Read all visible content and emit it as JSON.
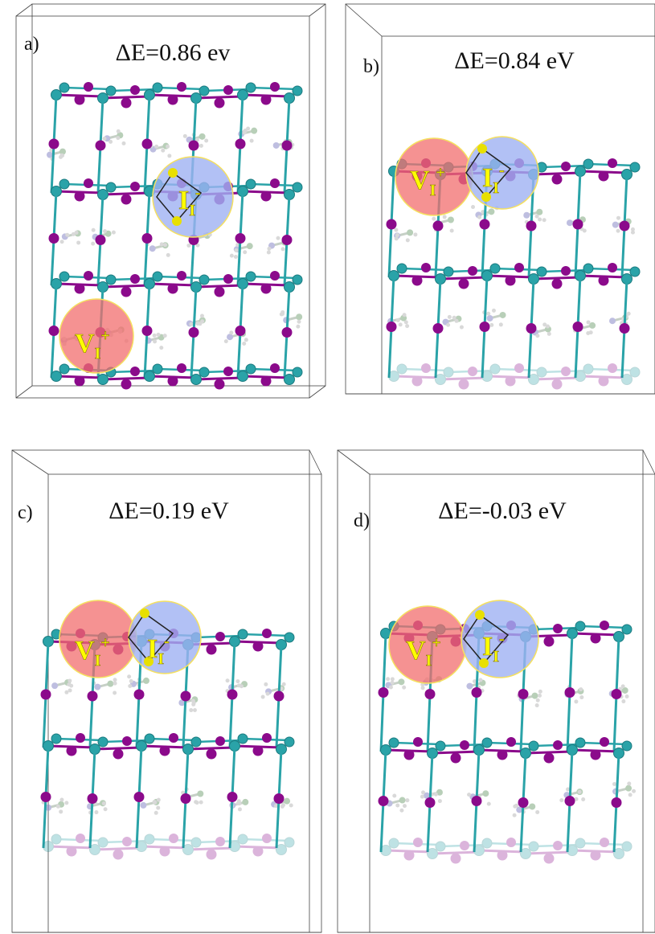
{
  "panels": [
    {
      "label": "a)",
      "energy": "ΔE=0.86 ev",
      "vacancy": {
        "base": "V",
        "sub": "I",
        "sup": "+"
      },
      "interstitial": {
        "base": "I",
        "sub": "I",
        "sup": "-"
      }
    },
    {
      "label": "b)",
      "energy": "ΔE=0.84 eV",
      "vacancy": {
        "base": "V",
        "sub": "I",
        "sup": "+"
      },
      "interstitial": {
        "base": "I",
        "sub": "I",
        "sup": "-"
      }
    },
    {
      "label": "c)",
      "energy": "ΔE=0.19 eV",
      "vacancy": {
        "base": "V",
        "sub": "I",
        "sup": "+"
      },
      "interstitial": {
        "base": "I",
        "sub": "I",
        "sup": "-"
      }
    },
    {
      "label": "d)",
      "energy": "ΔE=-0.03 eV",
      "vacancy": {
        "base": "V",
        "sub": "I",
        "sup": "+"
      },
      "interstitial": {
        "base": "I",
        "sub": "I",
        "sup": "-"
      }
    }
  ]
}
